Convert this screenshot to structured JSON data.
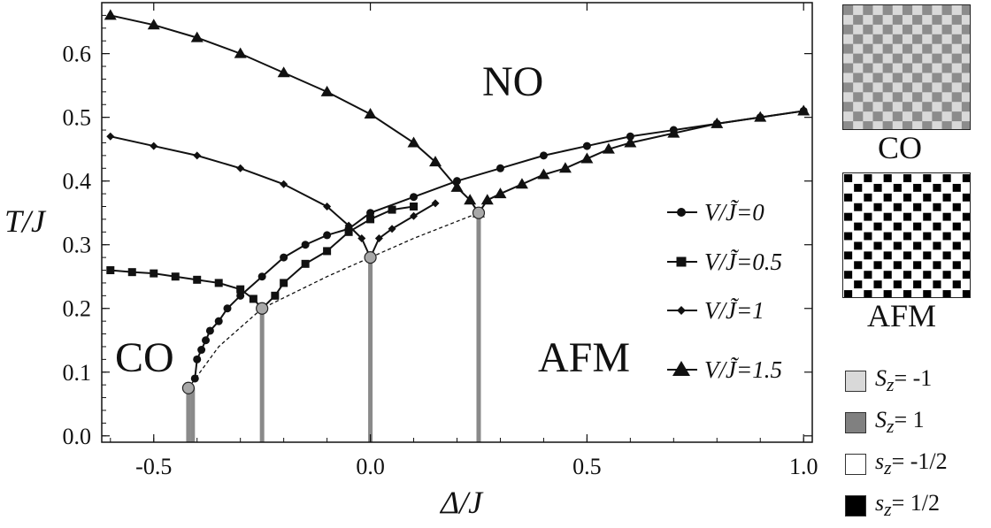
{
  "chart_data": {
    "type": "line",
    "xlabel": "Δ/J",
    "ylabel": "T/J",
    "xlim": [
      -0.62,
      1.02
    ],
    "ylim": [
      -0.01,
      0.68
    ],
    "x_ticks": [
      "-0.5",
      "0.0",
      "0.5",
      "1.0"
    ],
    "y_ticks": [
      "0.0",
      "0.1",
      "0.2",
      "0.3",
      "0.4",
      "0.5",
      "0.6"
    ],
    "region_labels": [
      "NO",
      "CO",
      "AFM"
    ],
    "series": [
      {
        "name": "V/J̃=0",
        "marker": "circle",
        "color": "#111111",
        "points": [
          [
            -0.405,
            0.09
          ],
          [
            -0.4,
            0.12
          ],
          [
            -0.39,
            0.135
          ],
          [
            -0.38,
            0.15
          ],
          [
            -0.37,
            0.165
          ],
          [
            -0.35,
            0.18
          ],
          [
            -0.33,
            0.2
          ],
          [
            -0.3,
            0.22
          ],
          [
            -0.25,
            0.25
          ],
          [
            -0.2,
            0.28
          ],
          [
            -0.15,
            0.3
          ],
          [
            -0.1,
            0.315
          ],
          [
            -0.05,
            0.325
          ],
          [
            0.0,
            0.35
          ],
          [
            0.1,
            0.375
          ],
          [
            0.2,
            0.4
          ],
          [
            0.3,
            0.42
          ],
          [
            0.4,
            0.44
          ],
          [
            0.5,
            0.455
          ],
          [
            0.6,
            0.47
          ],
          [
            0.7,
            0.48
          ],
          [
            0.8,
            0.49
          ],
          [
            0.9,
            0.5
          ],
          [
            1.0,
            0.51
          ]
        ]
      },
      {
        "name": "V/J̃=0.5",
        "marker": "square",
        "color": "#111111",
        "points": [
          [
            -0.6,
            0.26
          ],
          [
            -0.55,
            0.257
          ],
          [
            -0.5,
            0.255
          ],
          [
            -0.45,
            0.25
          ],
          [
            -0.4,
            0.245
          ],
          [
            -0.35,
            0.24
          ],
          [
            -0.3,
            0.23
          ],
          [
            -0.27,
            0.215
          ],
          [
            -0.25,
            0.2
          ],
          [
            -0.22,
            0.22
          ],
          [
            -0.2,
            0.24
          ],
          [
            -0.15,
            0.27
          ],
          [
            -0.1,
            0.29
          ],
          [
            -0.05,
            0.32
          ],
          [
            0.0,
            0.34
          ],
          [
            0.05,
            0.355
          ],
          [
            0.1,
            0.36
          ]
        ]
      },
      {
        "name": "V/J̃=1",
        "marker": "diamond",
        "color": "#111111",
        "points": [
          [
            -0.6,
            0.47
          ],
          [
            -0.5,
            0.455
          ],
          [
            -0.4,
            0.44
          ],
          [
            -0.3,
            0.42
          ],
          [
            -0.2,
            0.395
          ],
          [
            -0.1,
            0.36
          ],
          [
            -0.05,
            0.33
          ],
          [
            -0.02,
            0.31
          ],
          [
            0.0,
            0.28
          ],
          [
            0.02,
            0.31
          ],
          [
            0.05,
            0.325
          ],
          [
            0.1,
            0.345
          ],
          [
            0.15,
            0.365
          ]
        ]
      },
      {
        "name": "V/J̃=1.5",
        "marker": "triangle",
        "color": "#111111",
        "points": [
          [
            -0.6,
            0.66
          ],
          [
            -0.5,
            0.645
          ],
          [
            -0.4,
            0.625
          ],
          [
            -0.3,
            0.6
          ],
          [
            -0.2,
            0.57
          ],
          [
            -0.1,
            0.54
          ],
          [
            0.0,
            0.505
          ],
          [
            0.1,
            0.46
          ],
          [
            0.15,
            0.43
          ],
          [
            0.2,
            0.39
          ],
          [
            0.23,
            0.37
          ],
          [
            0.25,
            0.35
          ],
          [
            0.27,
            0.37
          ],
          [
            0.3,
            0.38
          ],
          [
            0.35,
            0.395
          ],
          [
            0.4,
            0.41
          ],
          [
            0.45,
            0.42
          ],
          [
            0.5,
            0.435
          ],
          [
            0.55,
            0.45
          ],
          [
            0.6,
            0.46
          ],
          [
            0.7,
            0.475
          ],
          [
            0.8,
            0.49
          ],
          [
            0.9,
            0.5
          ],
          [
            1.0,
            0.51
          ]
        ]
      }
    ],
    "critical_points": [
      [
        -0.42,
        0.075
      ],
      [
        -0.25,
        0.2
      ],
      [
        0.0,
        0.28
      ],
      [
        0.25,
        0.35
      ]
    ],
    "dashed_curve": [
      [
        -0.42,
        0.075
      ],
      [
        -0.35,
        0.14
      ],
      [
        -0.25,
        0.2
      ],
      [
        -0.1,
        0.25
      ],
      [
        0.0,
        0.28
      ],
      [
        0.1,
        0.31
      ],
      [
        0.25,
        0.35
      ]
    ],
    "vertical_bars_x": [
      -0.42,
      -0.41,
      -0.25,
      0.0,
      0.25
    ]
  },
  "side_panel": {
    "co_label": "CO",
    "afm_label": "AFM",
    "legend": [
      {
        "symbol": "S",
        "sub": "z",
        "rest": "= -1",
        "color": "#d9d9d9"
      },
      {
        "symbol": "S",
        "sub": "z",
        "rest": "= 1",
        "color": "#808080"
      },
      {
        "symbol": "s",
        "sub": "z",
        "rest": "= -1/2",
        "color": "#ffffff"
      },
      {
        "symbol": "s",
        "sub": "z",
        "rest": "= 1/2",
        "color": "#000000"
      }
    ]
  }
}
